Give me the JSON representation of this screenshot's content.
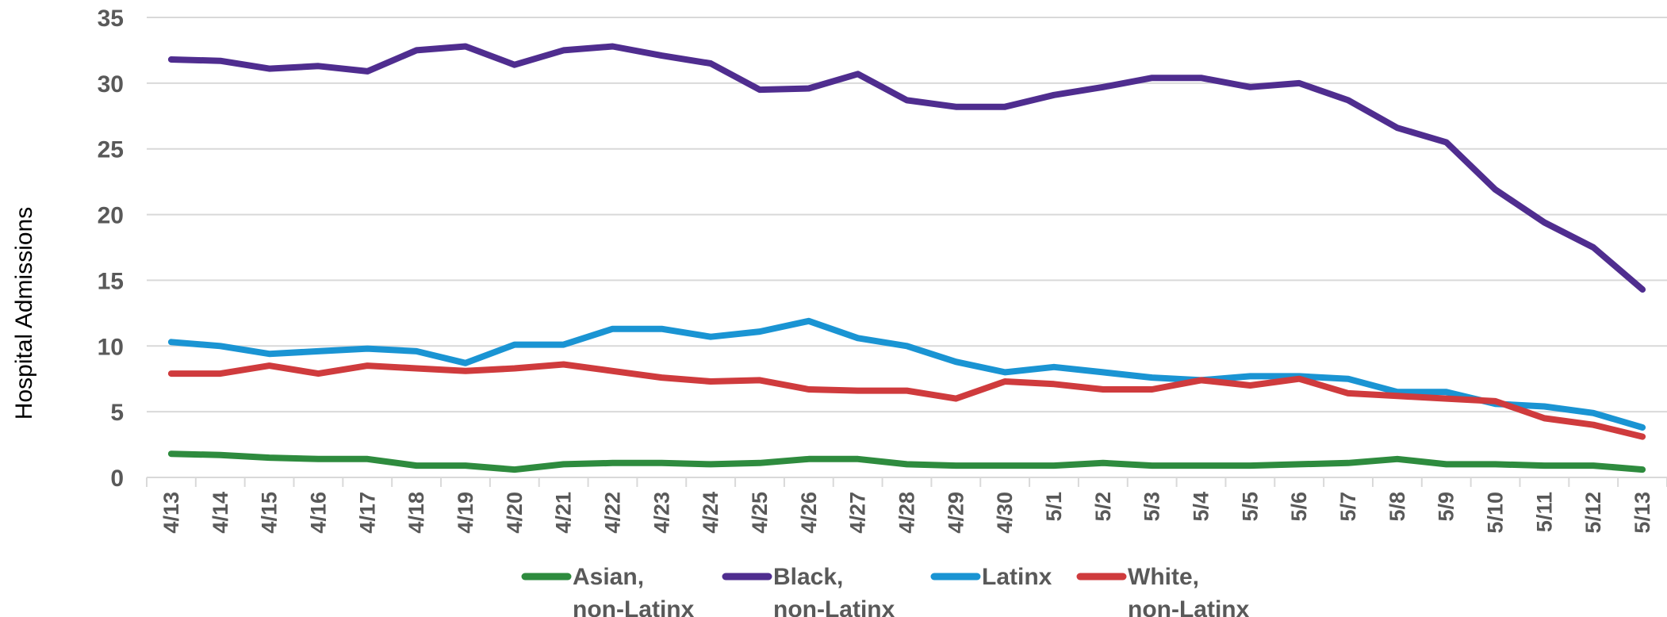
{
  "chart_data": {
    "type": "line",
    "title": "",
    "xlabel": "",
    "ylabel": "Hospital Admissions",
    "ylim": [
      0,
      35
    ],
    "yticks": [
      0,
      5,
      10,
      15,
      20,
      25,
      30,
      35
    ],
    "grid": "horizontal",
    "legend_position": "bottom",
    "categories": [
      "4/13",
      "4/14",
      "4/15",
      "4/16",
      "4/17",
      "4/18",
      "4/19",
      "4/20",
      "4/21",
      "4/22",
      "4/23",
      "4/24",
      "4/25",
      "4/26",
      "4/27",
      "4/28",
      "4/29",
      "4/30",
      "5/1",
      "5/2",
      "5/3",
      "5/4",
      "5/5",
      "5/6",
      "5/7",
      "5/8",
      "5/9",
      "5/10",
      "5/11",
      "5/12",
      "5/13"
    ],
    "series": [
      {
        "name": "Asian, non-Latinx",
        "legend_lines": [
          "Asian,",
          "non-Latinx"
        ],
        "color": "#2e8b3e",
        "values": [
          1.8,
          1.7,
          1.5,
          1.4,
          1.4,
          0.9,
          0.9,
          0.6,
          1.0,
          1.1,
          1.1,
          1.0,
          1.1,
          1.4,
          1.4,
          1.0,
          0.9,
          0.9,
          0.9,
          1.1,
          0.9,
          0.9,
          0.9,
          1.0,
          1.1,
          1.4,
          1.0,
          1.0,
          0.9,
          0.9,
          0.6
        ]
      },
      {
        "name": "Black, non-Latinx",
        "legend_lines": [
          "Black,",
          "non-Latinx"
        ],
        "color": "#4f2d8f",
        "values": [
          31.8,
          31.7,
          31.1,
          31.3,
          30.9,
          32.5,
          32.8,
          31.4,
          32.5,
          32.8,
          32.1,
          31.5,
          29.5,
          29.6,
          30.7,
          28.7,
          28.2,
          28.2,
          29.1,
          29.7,
          30.4,
          30.4,
          29.7,
          30.0,
          28.7,
          26.6,
          25.5,
          21.9,
          19.4,
          17.5,
          14.3
        ]
      },
      {
        "name": "Latinx",
        "legend_lines": [
          "Latinx"
        ],
        "color": "#1a94d3",
        "values": [
          10.3,
          10.0,
          9.4,
          9.6,
          9.8,
          9.6,
          8.7,
          10.1,
          10.1,
          11.3,
          11.3,
          10.7,
          11.1,
          11.9,
          10.6,
          10.0,
          8.8,
          8.0,
          8.4,
          8.0,
          7.6,
          7.4,
          7.7,
          7.7,
          7.5,
          6.5,
          6.5,
          5.6,
          5.4,
          4.9,
          3.8
        ]
      },
      {
        "name": "White, non-Latinx",
        "legend_lines": [
          "White,",
          "non-Latinx"
        ],
        "color": "#cf3b3d",
        "values": [
          7.9,
          7.9,
          8.5,
          7.9,
          8.5,
          8.3,
          8.1,
          8.3,
          8.6,
          8.1,
          7.6,
          7.3,
          7.4,
          6.7,
          6.6,
          6.6,
          6.0,
          7.3,
          7.1,
          6.7,
          6.7,
          7.4,
          7.0,
          7.5,
          6.4,
          6.2,
          6.0,
          5.8,
          4.5,
          4.0,
          3.1
        ]
      }
    ]
  }
}
